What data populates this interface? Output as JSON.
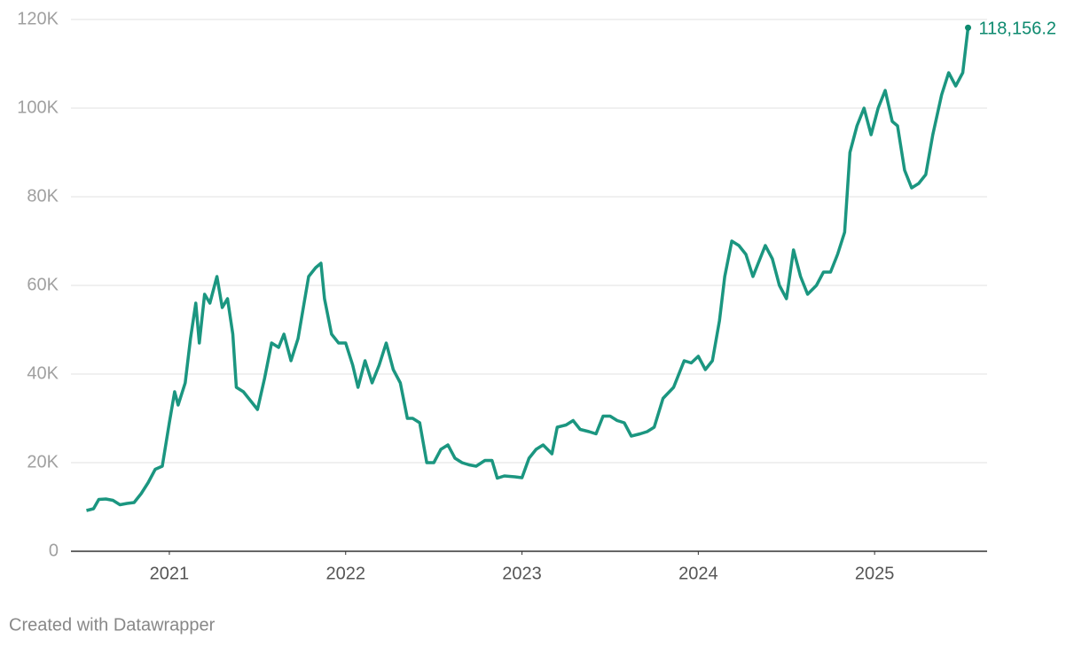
{
  "chart_data": {
    "type": "line",
    "x": [
      2020.53,
      2020.57,
      2020.6,
      2020.64,
      2020.68,
      2020.72,
      2020.76,
      2020.8,
      2020.84,
      2020.88,
      2020.92,
      2020.96,
      2021.0,
      2021.03,
      2021.05,
      2021.09,
      2021.12,
      2021.15,
      2021.17,
      2021.2,
      2021.23,
      2021.27,
      2021.3,
      2021.33,
      2021.36,
      2021.38,
      2021.42,
      2021.46,
      2021.5,
      2021.54,
      2021.58,
      2021.62,
      2021.65,
      2021.69,
      2021.73,
      2021.76,
      2021.79,
      2021.83,
      2021.86,
      2021.88,
      2021.92,
      2021.96,
      2022.0,
      2022.04,
      2022.07,
      2022.11,
      2022.15,
      2022.19,
      2022.23,
      2022.27,
      2022.31,
      2022.35,
      2022.38,
      2022.42,
      2022.46,
      2022.5,
      2022.54,
      2022.58,
      2022.62,
      2022.66,
      2022.7,
      2022.74,
      2022.79,
      2022.83,
      2022.86,
      2022.9,
      2022.96,
      2023.0,
      2023.04,
      2023.08,
      2023.12,
      2023.17,
      2023.2,
      2023.25,
      2023.29,
      2023.33,
      2023.38,
      2023.42,
      2023.46,
      2023.5,
      2023.54,
      2023.58,
      2023.62,
      2023.67,
      2023.71,
      2023.75,
      2023.8,
      2023.86,
      2023.92,
      2023.96,
      2024.0,
      2024.04,
      2024.08,
      2024.12,
      2024.15,
      2024.19,
      2024.23,
      2024.27,
      2024.31,
      2024.35,
      2024.38,
      2024.42,
      2024.46,
      2024.5,
      2024.54,
      2024.58,
      2024.62,
      2024.67,
      2024.71,
      2024.75,
      2024.79,
      2024.83,
      2024.86,
      2024.9,
      2024.94,
      2024.98,
      2025.02,
      2025.06,
      2025.1,
      2025.13,
      2025.17,
      2025.21,
      2025.25,
      2025.29,
      2025.33,
      2025.38,
      2025.42,
      2025.46,
      2025.5,
      2025.53
    ],
    "series": [
      {
        "color": "#1b9680",
        "values": [
          9200,
          9600,
          11700,
          11800,
          11500,
          10500,
          10800,
          11000,
          13000,
          15500,
          18500,
          19200,
          29000,
          36000,
          33000,
          38000,
          48000,
          56000,
          47000,
          58000,
          56000,
          62000,
          55000,
          57000,
          49000,
          37000,
          36000,
          34000,
          32000,
          39000,
          47000,
          46000,
          49000,
          43000,
          48000,
          55000,
          62000,
          64000,
          65000,
          57000,
          49000,
          47000,
          47000,
          42000,
          37000,
          43000,
          38000,
          42000,
          47000,
          41000,
          38000,
          30000,
          30000,
          29000,
          20000,
          20000,
          23000,
          24000,
          21000,
          20000,
          19500,
          19200,
          20500,
          20500,
          16500,
          17000,
          16800,
          16600,
          21000,
          23000,
          24000,
          22000,
          28000,
          28500,
          29500,
          27500,
          27000,
          26500,
          30500,
          30500,
          29500,
          29000,
          26000,
          26500,
          27000,
          28000,
          34500,
          37000,
          43000,
          42500,
          44000,
          41000,
          43000,
          52000,
          62000,
          70000,
          69000,
          67000,
          62000,
          66000,
          69000,
          66000,
          60000,
          57000,
          68000,
          62000,
          58000,
          60000,
          63000,
          63000,
          67000,
          72000,
          90000,
          96000,
          100000,
          94000,
          100000,
          104000,
          97000,
          96000,
          86000,
          82000,
          83000,
          85000,
          94000,
          103000,
          108000,
          105000,
          108000,
          118156.2
        ]
      }
    ],
    "annotations": [
      {
        "x": 2025.53,
        "value": 118156.2,
        "label": "118,156.2",
        "color": "#0e8a6f"
      }
    ],
    "xlim": [
      2020.442,
      2025.638
    ],
    "xticks": [
      2021,
      2022,
      2023,
      2024,
      2025
    ],
    "ylim": [
      0,
      120000
    ],
    "yticks": [
      0,
      {
        "value": 20000,
        "label": "20K"
      },
      {
        "value": 40000,
        "label": "40K"
      },
      {
        "value": 60000,
        "label": "60K"
      },
      {
        "value": 80000,
        "label": "80K"
      },
      {
        "value": 100000,
        "label": "100K"
      },
      {
        "value": 120000,
        "label": "120K"
      }
    ],
    "grid": true,
    "footer": "Created with Datawrapper"
  }
}
